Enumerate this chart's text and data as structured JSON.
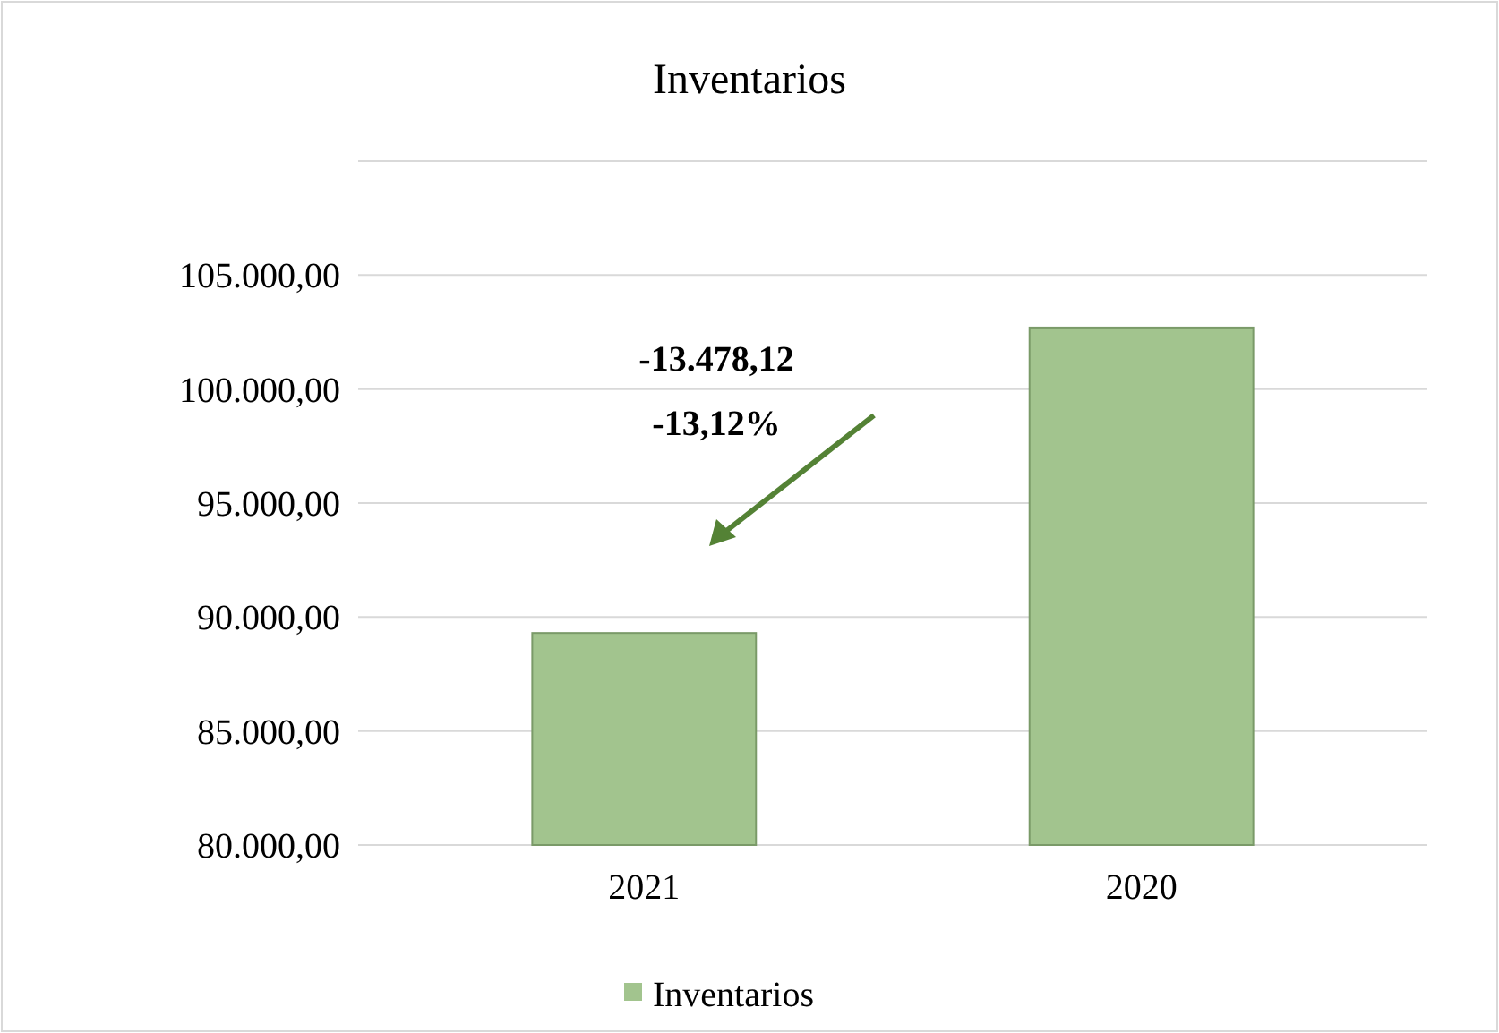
{
  "chart_data": {
    "type": "bar",
    "title": "Inventarios",
    "categories": [
      "2021",
      "2020"
    ],
    "series": [
      {
        "name": "Inventarios",
        "color": "#a2c48e",
        "values": [
          89300,
          102700
        ]
      }
    ],
    "ylim": [
      80000,
      110000
    ],
    "yticks": [
      {
        "value": 80000,
        "label": "80.000,00"
      },
      {
        "value": 85000,
        "label": "85.000,00"
      },
      {
        "value": 90000,
        "label": "90.000,00"
      },
      {
        "value": 95000,
        "label": "95.000,00"
      },
      {
        "value": 100000,
        "label": "100.000,00"
      },
      {
        "value": 105000,
        "label": "105.000,00"
      },
      {
        "value": 110000,
        "label": null
      }
    ],
    "grid": "y",
    "legend": "bottom",
    "annotations": [
      "-13.478,12",
      "-13,12%"
    ]
  }
}
